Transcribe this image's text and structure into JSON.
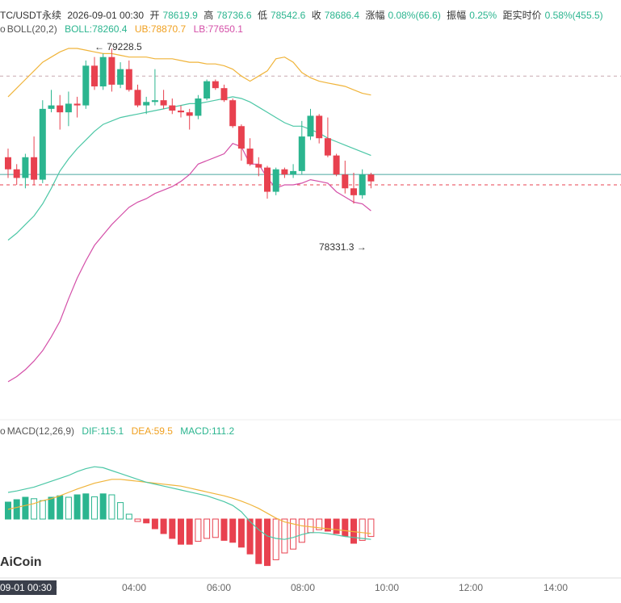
{
  "header": {
    "symbol": "TC/USDT永续",
    "datetime": "2026-09-01 00:30",
    "open_label": "开",
    "open": "78619.9",
    "high_label": "高",
    "high": "78736.6",
    "low_label": "低",
    "low": "78542.6",
    "close_label": "收",
    "close": "78686.4",
    "change_label": "涨幅",
    "change": "0.08%(66.6)",
    "amplitude_label": "振幅",
    "amplitude": "0.25%",
    "distance_label": "距实时价",
    "distance": "0.58%(455.5)"
  },
  "boll": {
    "name": "BOLL(20,2)",
    "boll": "BOLL:78260.4",
    "ub": "UB:78870.7",
    "lb": "LB:77650.1"
  },
  "macd": {
    "name": "MACD(12,26,9)",
    "dif": "DIF:115.1",
    "dea": "DEA:59.5",
    "macd": "MACD:111.2"
  },
  "annotations": {
    "high_mark": "← 79228.5",
    "low_mark": "78331.3 →"
  },
  "logo": "AiCoin",
  "time_badge": "09-01 00:30",
  "x_labels": [
    "00",
    "04:00",
    "06:00",
    "08:00",
    "10:00",
    "12:00",
    "14:00"
  ],
  "colors": {
    "up": "#2bb58f",
    "down": "#e8414f",
    "mid": "#4cc7a6",
    "ub": "#f0b43a",
    "lb": "#d44fa8",
    "dif": "#4cc7a6",
    "dea": "#f0b43a"
  },
  "chart_data": {
    "type": "candlestick",
    "interval": "15m",
    "candles": [
      [
        78600,
        78650,
        78480,
        78530
      ],
      [
        78530,
        78560,
        78440,
        78480
      ],
      [
        78480,
        78620,
        78420,
        78600
      ],
      [
        78600,
        78720,
        78440,
        78470
      ],
      [
        78470,
        78930,
        78450,
        78880
      ],
      [
        78880,
        78990,
        78860,
        78900
      ],
      [
        78900,
        78960,
        78760,
        78860
      ],
      [
        78860,
        78980,
        78780,
        78910
      ],
      [
        78910,
        78950,
        78830,
        78900
      ],
      [
        78900,
        79160,
        78880,
        79130
      ],
      [
        79130,
        79180,
        78990,
        79010
      ],
      [
        79010,
        79200,
        78990,
        79180
      ],
      [
        79180,
        79228.5,
        78980,
        79020
      ],
      [
        79020,
        79150,
        79000,
        79110
      ],
      [
        79110,
        79160,
        78980,
        78990
      ],
      [
        78990,
        79020,
        78890,
        78900
      ],
      [
        78900,
        78950,
        78850,
        78920
      ],
      [
        78920,
        79110,
        78900,
        78930
      ],
      [
        78930,
        78990,
        78880,
        78900
      ],
      [
        78900,
        78940,
        78850,
        78870
      ],
      [
        78870,
        78900,
        78830,
        78860
      ],
      [
        78860,
        78880,
        78760,
        78840
      ],
      [
        78840,
        78960,
        78820,
        78940
      ],
      [
        78940,
        79050,
        78930,
        79040
      ],
      [
        79040,
        79050,
        78990,
        79000
      ],
      [
        79000,
        79020,
        78920,
        78930
      ],
      [
        78930,
        78940,
        78770,
        78780
      ],
      [
        78780,
        78790,
        78580,
        78650
      ],
      [
        78650,
        78710,
        78550,
        78560
      ],
      [
        78560,
        78600,
        78490,
        78540
      ],
      [
        78540,
        78550,
        78360,
        78400
      ],
      [
        78400,
        78540,
        78380,
        78530
      ],
      [
        78530,
        78540,
        78480,
        78500
      ],
      [
        78500,
        78560,
        78480,
        78520
      ],
      [
        78520,
        78810,
        78500,
        78720
      ],
      [
        78720,
        78880,
        78700,
        78840
      ],
      [
        78840,
        78850,
        78680,
        78710
      ],
      [
        78710,
        78830,
        78600,
        78610
      ],
      [
        78610,
        78620,
        78490,
        78500
      ],
      [
        78500,
        78580,
        78390,
        78420
      ],
      [
        78420,
        78510,
        78331.3,
        78380
      ],
      [
        78380,
        78530,
        78360,
        78500
      ],
      [
        78500,
        78510,
        78420,
        78460
      ]
    ],
    "boll_mid": [
      78120,
      78160,
      78210,
      78260,
      78330,
      78420,
      78520,
      78590,
      78650,
      78700,
      78750,
      78790,
      78810,
      78830,
      78840,
      78850,
      78860,
      78870,
      78880,
      78890,
      78900,
      78910,
      78910,
      78920,
      78930,
      78940,
      78950,
      78940,
      78920,
      78890,
      78860,
      78830,
      78800,
      78780,
      78780,
      78760,
      78740,
      78710,
      78690,
      78670,
      78650,
      78630,
      78610
    ],
    "boll_ub": [
      78950,
      79000,
      79050,
      79100,
      79150,
      79180,
      79210,
      79230,
      79230,
      79220,
      79210,
      79200,
      79200,
      79190,
      79180,
      79180,
      79180,
      79170,
      79170,
      79170,
      79160,
      79150,
      79150,
      79140,
      79140,
      79130,
      79110,
      79070,
      79040,
      79070,
      79100,
      79170,
      79180,
      79150,
      79090,
      79060,
      79040,
      79030,
      79020,
      79010,
      78990,
      78970,
      78960
    ],
    "boll_lb": [
      77300,
      77330,
      77370,
      77420,
      77480,
      77560,
      77650,
      77780,
      77900,
      78000,
      78090,
      78150,
      78210,
      78260,
      78310,
      78340,
      78360,
      78390,
      78410,
      78430,
      78460,
      78500,
      78560,
      78580,
      78600,
      78620,
      78680,
      78660,
      78560,
      78560,
      78480,
      78420,
      78440,
      78440,
      78450,
      78470,
      78460,
      78450,
      78400,
      78370,
      78340,
      78330,
      78290
    ],
    "macd_hist": [
      35,
      40,
      45,
      42,
      38,
      45,
      48,
      45,
      50,
      52,
      46,
      52,
      50,
      34,
      10,
      -5,
      -8,
      -20,
      -30,
      -40,
      -52,
      -52,
      -46,
      -40,
      -38,
      -44,
      -48,
      -58,
      -72,
      -92,
      -96,
      -84,
      -70,
      -62,
      -48,
      -28,
      -22,
      -25,
      -30,
      -35,
      -50,
      -44,
      -36
    ],
    "macd_dif": [
      55,
      58,
      62,
      66,
      72,
      78,
      84,
      90,
      98,
      104,
      108,
      106,
      100,
      94,
      88,
      82,
      76,
      72,
      68,
      64,
      60,
      56,
      52,
      48,
      42,
      36,
      28,
      15,
      -5,
      -22,
      -35,
      -40,
      -42,
      -38,
      -32,
      -28,
      -28,
      -30,
      -33,
      -36,
      -38,
      -40,
      -42
    ],
    "macd_dea": [
      20,
      24,
      28,
      32,
      38,
      42,
      48,
      55,
      62,
      68,
      74,
      78,
      82,
      82,
      80,
      78,
      76,
      74,
      72,
      70,
      68,
      64,
      60,
      56,
      52,
      48,
      43,
      37,
      30,
      22,
      12,
      2,
      -6,
      -10,
      -14,
      -16,
      -18,
      -20,
      -22,
      -24,
      -26,
      -28,
      -30
    ],
    "price_levels": [
      79070,
      78500,
      78440
    ],
    "ylim_price": [
      77150,
      79300
    ]
  }
}
